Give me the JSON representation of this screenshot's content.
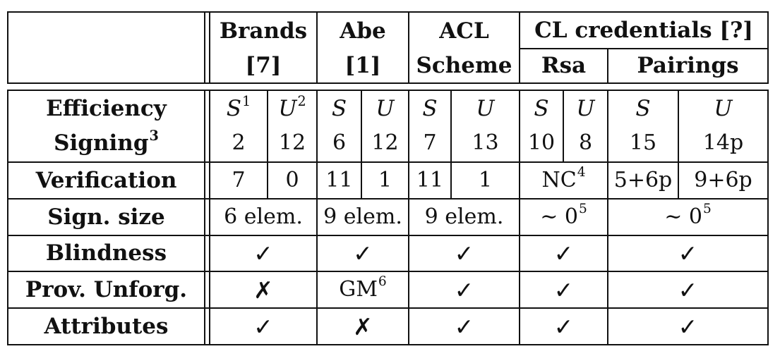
{
  "header": {
    "brands": {
      "line1": "Brands",
      "line2": "[7]"
    },
    "abe": {
      "line1": "Abe",
      "line2": "[1]"
    },
    "acl": {
      "line1": "ACL",
      "line2": "Scheme"
    },
    "cl": {
      "title": "CL credentials [?]",
      "rsa": "Rsa",
      "pairings": "Pairings"
    }
  },
  "rows": {
    "efficiency": {
      "label": "Efficiency",
      "cols": [
        {
          "main": "S",
          "sup": "1"
        },
        {
          "main": "U",
          "sup": "2"
        },
        {
          "main": "S",
          "sup": ""
        },
        {
          "main": "U",
          "sup": ""
        },
        {
          "main": "S",
          "sup": ""
        },
        {
          "main": "U",
          "sup": ""
        },
        {
          "main": "S",
          "sup": ""
        },
        {
          "main": "U",
          "sup": ""
        },
        {
          "main": "S",
          "sup": ""
        },
        {
          "main": "U",
          "sup": ""
        }
      ]
    },
    "signing": {
      "label": "Signing",
      "label_sup": "3",
      "values": [
        "2",
        "12",
        "6",
        "12",
        "7",
        "13",
        "10",
        "8",
        "15",
        "14p"
      ]
    },
    "verification": {
      "label": "Verification",
      "values": [
        "7",
        "0",
        "11",
        "1",
        "11",
        "1",
        "5+6p",
        "9+6p"
      ],
      "rsa_merged": {
        "main": "NC",
        "sup": "4"
      }
    },
    "sign_size": {
      "label": "Sign. size",
      "brands": "6 elem.",
      "abe": "9 elem.",
      "acl": "9 elem.",
      "rsa": {
        "main": "∼ 0",
        "sup": "5"
      },
      "pairings": {
        "main": "∼ 0",
        "sup": "5"
      }
    },
    "blindness": {
      "label": "Blindness",
      "values": [
        "✓",
        "✓",
        "✓",
        "✓",
        "✓"
      ]
    },
    "prov_unforg": {
      "label": "Prov. Unforg.",
      "values": [
        "✗",
        "",
        "✓",
        "✓",
        "✓"
      ],
      "abe": {
        "main": "GM",
        "sup": "6"
      }
    },
    "attributes": {
      "label": "Attributes",
      "values": [
        "✓",
        "✗",
        "✓",
        "✓",
        "✓"
      ]
    }
  }
}
